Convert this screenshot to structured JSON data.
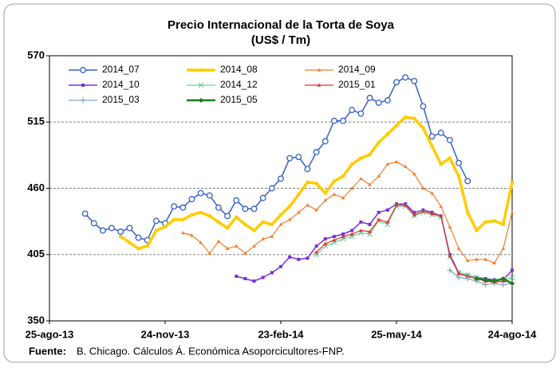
{
  "chart_data": {
    "type": "line",
    "title": "Precio Internacional de la Torta de Soya",
    "subtitle": "(US$ / Tm)",
    "source_label": "Fuente:",
    "source": "B. Chicago. Cálculos Á. Económica Asoporcicultores-FNP.",
    "x": [
      "2013-09-22",
      "2013-09-29",
      "2013-10-06",
      "2013-10-13",
      "2013-10-20",
      "2013-10-27",
      "2013-11-03",
      "2013-11-10",
      "2013-11-17",
      "2013-11-24",
      "2013-12-01",
      "2013-12-08",
      "2013-12-15",
      "2013-12-22",
      "2013-12-29",
      "2014-01-05",
      "2014-01-12",
      "2014-01-19",
      "2014-01-26",
      "2014-02-02",
      "2014-02-09",
      "2014-02-16",
      "2014-02-23",
      "2014-03-02",
      "2014-03-09",
      "2014-03-16",
      "2014-03-23",
      "2014-03-30",
      "2014-04-06",
      "2014-04-13",
      "2014-04-20",
      "2014-04-27",
      "2014-05-04",
      "2014-05-11",
      "2014-05-18",
      "2014-05-25",
      "2014-06-01",
      "2014-06-08",
      "2014-06-15",
      "2014-06-22",
      "2014-06-29",
      "2014-07-06",
      "2014-07-13",
      "2014-07-20",
      "2014-07-27",
      "2014-08-03",
      "2014-08-10",
      "2014-08-17",
      "2014-08-24"
    ],
    "xlim": [
      "2013-08-25",
      "2014-08-24"
    ],
    "xticks": [
      {
        "value": "2013-08-25",
        "label": "25-ago-13"
      },
      {
        "value": "2013-11-24",
        "label": "24-nov-13"
      },
      {
        "value": "2014-02-23",
        "label": "23-feb-14"
      },
      {
        "value": "2014-05-25",
        "label": "25-may-14"
      },
      {
        "value": "2014-08-24",
        "label": "24-ago-14"
      }
    ],
    "ylim": [
      350,
      570
    ],
    "yticks": [
      350,
      405,
      460,
      515,
      570
    ],
    "grid": true,
    "series": [
      {
        "name": "2014_07",
        "color": "#3560c8",
        "marker": "circle",
        "width": 1.5,
        "values": [
          439,
          431,
          425,
          427,
          424,
          427,
          419,
          417,
          433,
          431,
          445,
          444,
          451,
          456,
          454,
          444,
          437,
          450,
          443,
          443,
          452,
          460,
          468,
          485,
          486,
          476,
          490,
          499,
          516,
          516,
          525,
          522,
          535,
          531,
          533,
          548,
          552,
          549,
          528,
          503,
          506,
          500,
          481,
          466,
          null,
          null,
          null,
          null,
          null
        ]
      },
      {
        "name": "2014_08",
        "color": "#ffcc00",
        "marker": "square",
        "width": 3.5,
        "values": [
          null,
          null,
          null,
          null,
          420,
          415,
          410,
          412,
          425,
          428,
          434,
          434,
          438,
          440,
          437,
          432,
          427,
          436,
          430,
          425,
          432,
          430,
          438,
          445,
          455,
          465,
          464,
          456,
          466,
          470,
          480,
          485,
          488,
          498,
          505,
          512,
          519,
          518,
          510,
          495,
          480,
          485,
          470,
          440,
          425,
          432,
          433,
          430,
          465
        ]
      },
      {
        "name": "2014_09",
        "color": "#f07e2b",
        "marker": "triangle",
        "width": 1.2,
        "values": [
          null,
          null,
          null,
          null,
          null,
          null,
          null,
          null,
          null,
          null,
          null,
          423,
          421,
          415,
          406,
          416,
          410,
          412,
          406,
          412,
          418,
          420,
          430,
          434,
          440,
          446,
          442,
          450,
          455,
          452,
          460,
          468,
          463,
          470,
          480,
          482,
          478,
          472,
          460,
          456,
          445,
          428,
          410,
          400,
          401,
          401,
          398,
          410,
          440
        ]
      },
      {
        "name": "2014_10",
        "color": "#7b2fd6",
        "marker": "square",
        "width": 1.5,
        "values": [
          null,
          null,
          null,
          null,
          null,
          null,
          null,
          null,
          null,
          null,
          null,
          null,
          null,
          null,
          null,
          null,
          null,
          387,
          385,
          383,
          386,
          390,
          395,
          403,
          401,
          402,
          412,
          418,
          420,
          422,
          425,
          432,
          430,
          440,
          442,
          447,
          447,
          440,
          442,
          440,
          437,
          405,
          390,
          388,
          386,
          385,
          384,
          384,
          392
        ]
      },
      {
        "name": "2014_12",
        "color": "#6fcf9a",
        "marker": "x",
        "width": 1.2,
        "values": [
          null,
          null,
          null,
          null,
          null,
          null,
          null,
          null,
          null,
          null,
          null,
          null,
          null,
          null,
          null,
          null,
          null,
          null,
          null,
          null,
          null,
          null,
          null,
          null,
          null,
          null,
          405,
          412,
          415,
          418,
          420,
          423,
          422,
          433,
          430,
          445,
          445,
          437,
          440,
          438,
          436,
          403,
          390,
          388,
          386,
          384,
          383,
          384,
          386
        ]
      },
      {
        "name": "2015_01",
        "color": "#e03030",
        "marker": "triangle",
        "width": 1.2,
        "values": [
          null,
          null,
          null,
          null,
          null,
          null,
          null,
          null,
          null,
          null,
          null,
          null,
          null,
          null,
          null,
          null,
          null,
          null,
          null,
          null,
          null,
          null,
          null,
          null,
          null,
          null,
          407,
          414,
          417,
          420,
          422,
          425,
          424,
          434,
          432,
          446,
          446,
          438,
          441,
          439,
          437,
          404,
          389,
          387,
          385,
          383,
          382,
          383,
          382
        ]
      },
      {
        "name": "2015_03",
        "color": "#8fa3bf",
        "marker": "plus",
        "width": 1.2,
        "values": [
          null,
          null,
          null,
          null,
          null,
          null,
          null,
          null,
          null,
          null,
          null,
          null,
          null,
          null,
          null,
          null,
          null,
          null,
          null,
          null,
          null,
          null,
          null,
          null,
          null,
          null,
          null,
          null,
          null,
          null,
          null,
          null,
          null,
          null,
          null,
          null,
          null,
          null,
          null,
          null,
          null,
          392,
          386,
          385,
          383,
          380,
          381,
          380,
          381
        ]
      },
      {
        "name": "2015_05",
        "color": "#1e7b1e",
        "marker": "diamond",
        "width": 2.5,
        "values": [
          null,
          null,
          null,
          null,
          null,
          null,
          null,
          null,
          null,
          null,
          null,
          null,
          null,
          null,
          null,
          null,
          null,
          null,
          null,
          null,
          null,
          null,
          null,
          null,
          null,
          null,
          null,
          null,
          null,
          null,
          null,
          null,
          null,
          null,
          null,
          null,
          null,
          null,
          null,
          null,
          null,
          null,
          null,
          null,
          385,
          384,
          383,
          385,
          381
        ]
      }
    ]
  }
}
